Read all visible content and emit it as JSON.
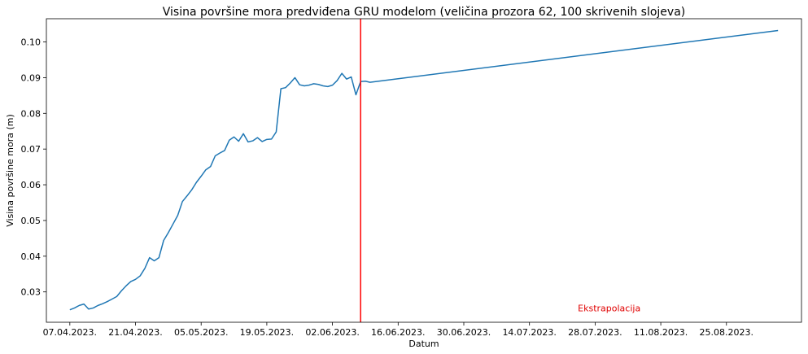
{
  "chart_data": {
    "type": "line",
    "title": "Visina površine mora predviđena GRU modelom (veličina prozora 62, 100 skrivenih slojeva)",
    "xlabel": "Datum",
    "ylabel": "Visina površine mora (m)",
    "ylim": [
      0.0215,
      0.1065
    ],
    "xlim": [
      "2023-04-02",
      "2023-09-10"
    ],
    "grid": false,
    "x_ticks": [
      {
        "date": "2023-04-07",
        "label": "07.04.2023."
      },
      {
        "date": "2023-04-21",
        "label": "21.04.2023."
      },
      {
        "date": "2023-05-05",
        "label": "05.05.2023."
      },
      {
        "date": "2023-05-19",
        "label": "19.05.2023."
      },
      {
        "date": "2023-06-02",
        "label": "02.06.2023."
      },
      {
        "date": "2023-06-16",
        "label": "16.06.2023."
      },
      {
        "date": "2023-06-30",
        "label": "30.06.2023."
      },
      {
        "date": "2023-07-14",
        "label": "14.07.2023."
      },
      {
        "date": "2023-07-28",
        "label": "28.07.2023."
      },
      {
        "date": "2023-08-11",
        "label": "11.08.2023."
      },
      {
        "date": "2023-08-25",
        "label": "25.08.2023."
      }
    ],
    "y_ticks": [
      {
        "value": 0.03,
        "label": "0.03"
      },
      {
        "value": 0.04,
        "label": "0.04"
      },
      {
        "value": 0.05,
        "label": "0.05"
      },
      {
        "value": 0.06,
        "label": "0.06"
      },
      {
        "value": 0.07,
        "label": "0.07"
      },
      {
        "value": 0.08,
        "label": "0.08"
      },
      {
        "value": 0.09,
        "label": "0.09"
      },
      {
        "value": 0.1,
        "label": "0.10"
      }
    ],
    "series": [
      {
        "color": "#1f77b4",
        "points": [
          [
            "2023-04-07",
            0.025
          ],
          [
            "2023-04-08",
            0.0255
          ],
          [
            "2023-04-09",
            0.0262
          ],
          [
            "2023-04-10",
            0.0266
          ],
          [
            "2023-04-11",
            0.0252
          ],
          [
            "2023-04-12",
            0.0255
          ],
          [
            "2023-04-13",
            0.0262
          ],
          [
            "2023-04-14",
            0.0267
          ],
          [
            "2023-04-15",
            0.0273
          ],
          [
            "2023-04-16",
            0.028
          ],
          [
            "2023-04-17",
            0.0287
          ],
          [
            "2023-04-18",
            0.0303
          ],
          [
            "2023-04-19",
            0.0317
          ],
          [
            "2023-04-20",
            0.0329
          ],
          [
            "2023-04-21",
            0.0335
          ],
          [
            "2023-04-22",
            0.0345
          ],
          [
            "2023-04-23",
            0.0366
          ],
          [
            "2023-04-24",
            0.0396
          ],
          [
            "2023-04-25",
            0.0387
          ],
          [
            "2023-04-26",
            0.0396
          ],
          [
            "2023-04-27",
            0.0444
          ],
          [
            "2023-04-28",
            0.0466
          ],
          [
            "2023-04-29",
            0.049
          ],
          [
            "2023-04-30",
            0.0514
          ],
          [
            "2023-05-01",
            0.0553
          ],
          [
            "2023-05-02",
            0.0569
          ],
          [
            "2023-05-03",
            0.0586
          ],
          [
            "2023-05-04",
            0.0607
          ],
          [
            "2023-05-05",
            0.0624
          ],
          [
            "2023-05-06",
            0.0642
          ],
          [
            "2023-05-07",
            0.0651
          ],
          [
            "2023-05-08",
            0.0681
          ],
          [
            "2023-05-09",
            0.0689
          ],
          [
            "2023-05-10",
            0.0696
          ],
          [
            "2023-05-11",
            0.0725
          ],
          [
            "2023-05-12",
            0.0734
          ],
          [
            "2023-05-13",
            0.0722
          ],
          [
            "2023-05-14",
            0.0743
          ],
          [
            "2023-05-15",
            0.072
          ],
          [
            "2023-05-16",
            0.0723
          ],
          [
            "2023-05-17",
            0.0732
          ],
          [
            "2023-05-18",
            0.0721
          ],
          [
            "2023-05-19",
            0.0727
          ],
          [
            "2023-05-20",
            0.0728
          ],
          [
            "2023-05-21",
            0.0748
          ],
          [
            "2023-05-22",
            0.0869
          ],
          [
            "2023-05-23",
            0.0872
          ],
          [
            "2023-05-24",
            0.0885
          ],
          [
            "2023-05-25",
            0.09
          ],
          [
            "2023-05-26",
            0.088
          ],
          [
            "2023-05-27",
            0.0877
          ],
          [
            "2023-05-28",
            0.0879
          ],
          [
            "2023-05-29",
            0.0883
          ],
          [
            "2023-05-30",
            0.0881
          ],
          [
            "2023-05-31",
            0.0877
          ],
          [
            "2023-06-01",
            0.0875
          ],
          [
            "2023-06-02",
            0.0879
          ],
          [
            "2023-06-03",
            0.0892
          ],
          [
            "2023-06-04",
            0.0912
          ],
          [
            "2023-06-05",
            0.0896
          ],
          [
            "2023-06-06",
            0.0902
          ],
          [
            "2023-06-07",
            0.0852
          ],
          [
            "2023-06-08",
            0.0889
          ],
          [
            "2023-06-09",
            0.089
          ],
          [
            "2023-06-10",
            0.0887
          ],
          [
            "2023-09-05",
            0.1032
          ]
        ]
      }
    ],
    "vline": {
      "date": "2023-06-08",
      "color": "#ff0000"
    },
    "annotations": [
      {
        "text": "Ekstrapolacija",
        "date": "2023-07-31",
        "value": 0.0246,
        "color": "#e00000"
      }
    ]
  }
}
